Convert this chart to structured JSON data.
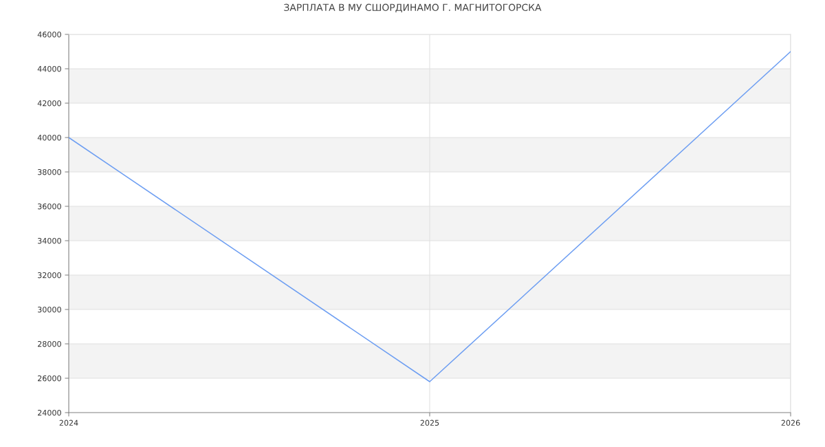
{
  "chart_data": {
    "type": "line",
    "title": "ЗАРПЛАТА В МУ СШОРДИНАМО Г. МАГНИТОГОРСКА",
    "categories": [
      "2024",
      "2025",
      "2026"
    ],
    "series": [
      {
        "color": "#6d9ef2",
        "values": [
          40000,
          25800,
          45000
        ]
      }
    ],
    "ylim": [
      24000,
      46000
    ],
    "yticks": [
      24000,
      26000,
      28000,
      30000,
      32000,
      34000,
      36000,
      38000,
      40000,
      42000,
      44000,
      46000
    ],
    "grid": true,
    "marker": "none",
    "line_style": "solid"
  }
}
